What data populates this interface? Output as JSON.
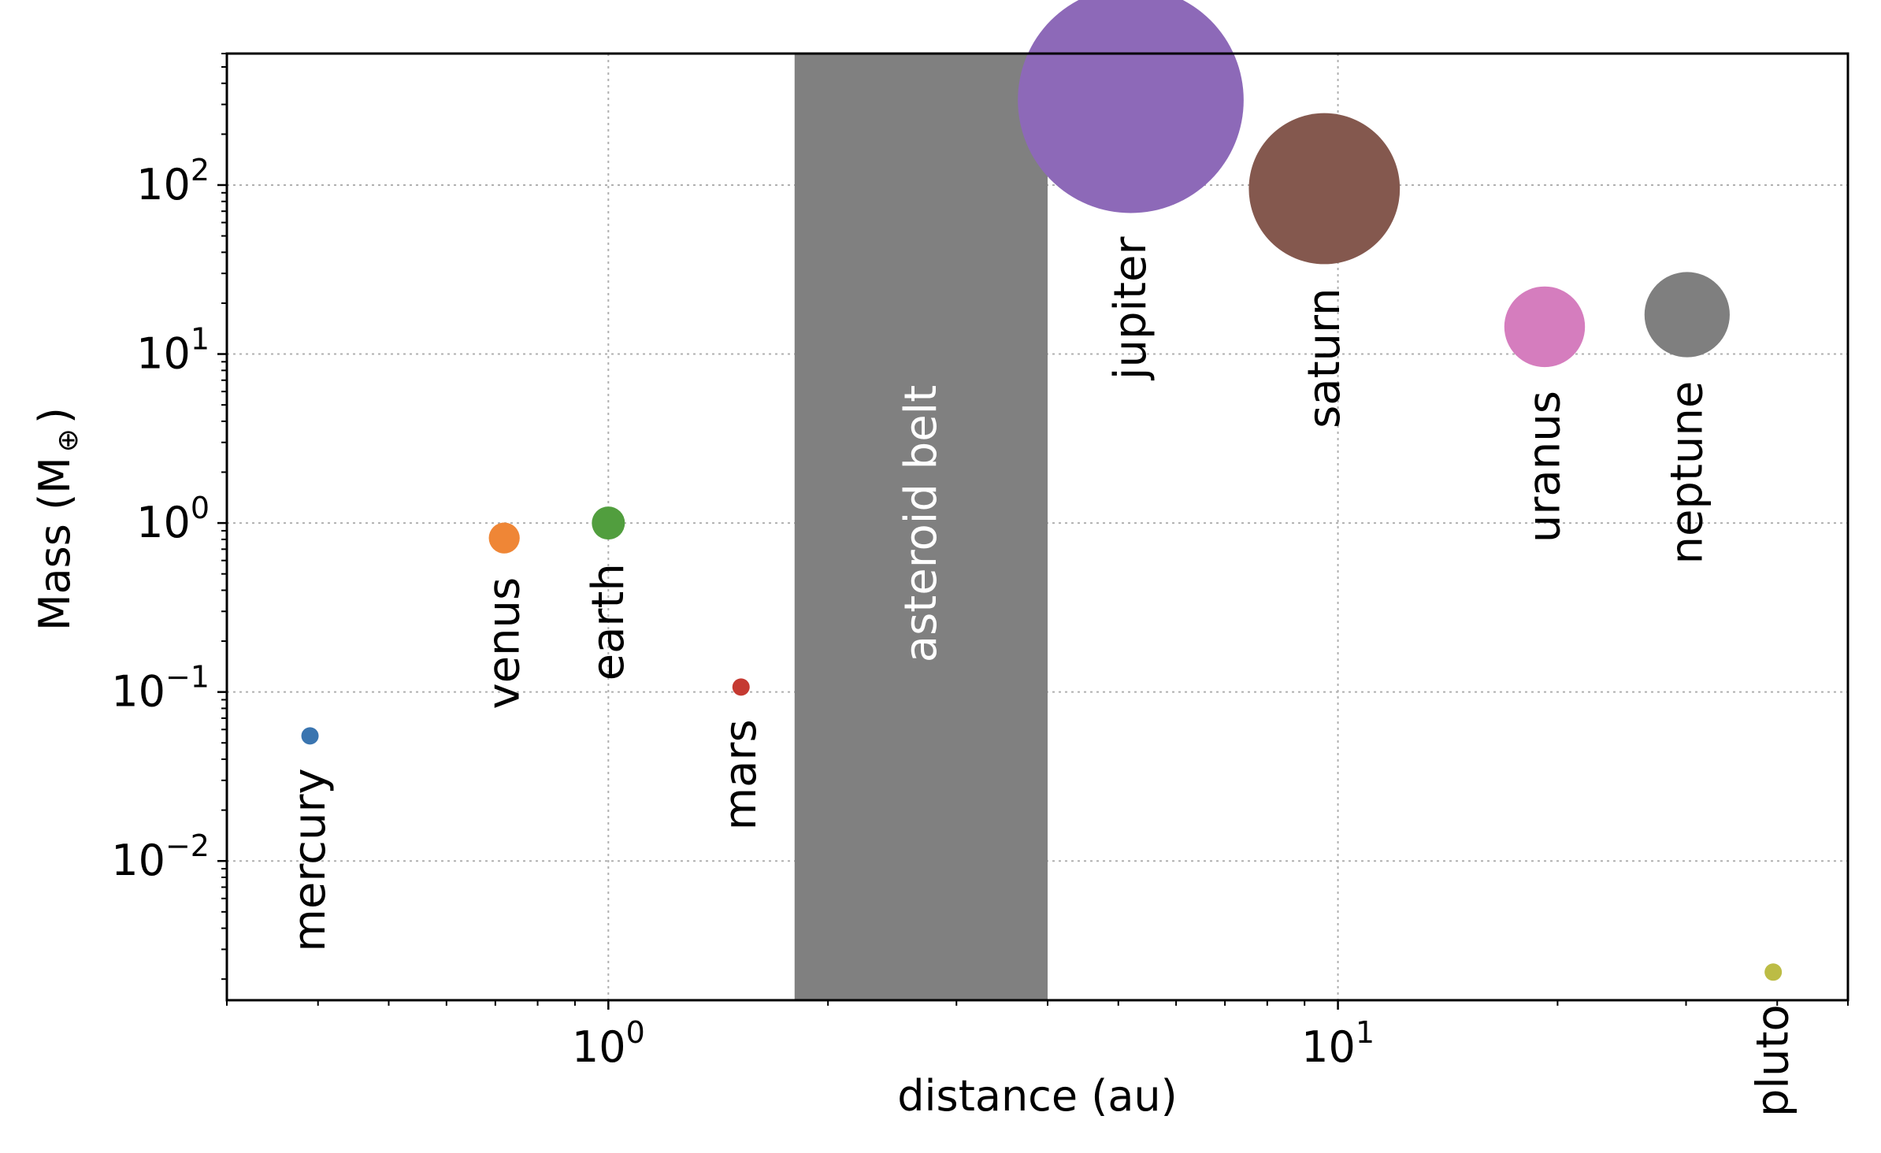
{
  "chart_data": {
    "type": "scatter",
    "title": "",
    "xlabel": "distance (au)",
    "ylabel_parts": [
      "Mass (M",
      "⊕",
      ")"
    ],
    "xscale": "log",
    "yscale": "log",
    "xlim": [
      0.3,
      50
    ],
    "ylim": [
      0.0015,
      600
    ],
    "grid": true,
    "legend": "none",
    "x_ticks": [
      {
        "value": 1,
        "base": "10",
        "exp": "0"
      },
      {
        "value": 10,
        "base": "10",
        "exp": "1"
      }
    ],
    "y_ticks": [
      {
        "value": 0.01,
        "base": "10",
        "exp": "−2"
      },
      {
        "value": 0.1,
        "base": "10",
        "exp": "−1"
      },
      {
        "value": 1,
        "base": "10",
        "exp": "0"
      },
      {
        "value": 10,
        "base": "10",
        "exp": "1"
      },
      {
        "value": 100,
        "base": "10",
        "exp": "2"
      }
    ],
    "band": {
      "label": "asteroid belt",
      "x_from": 1.8,
      "x_to": 4.0,
      "color": "#808080"
    },
    "points": [
      {
        "name": "mercury",
        "x": 0.39,
        "y": 0.055,
        "size": 0.055,
        "color": "#3a75b0",
        "label_pos": "below"
      },
      {
        "name": "venus",
        "x": 0.72,
        "y": 0.815,
        "size": 0.815,
        "color": "#ef8636",
        "label_pos": "below"
      },
      {
        "name": "earth",
        "x": 1.0,
        "y": 1.0,
        "size": 1.0,
        "color": "#519e3e",
        "label_pos": "below"
      },
      {
        "name": "mars",
        "x": 1.52,
        "y": 0.107,
        "size": 0.107,
        "color": "#c53a32",
        "label_pos": "below"
      },
      {
        "name": "jupiter",
        "x": 5.2,
        "y": 318,
        "size": 318,
        "color": "#8d69b8",
        "label_pos": "below"
      },
      {
        "name": "saturn",
        "x": 9.58,
        "y": 95.2,
        "size": 95.2,
        "color": "#84584e",
        "label_pos": "below"
      },
      {
        "name": "uranus",
        "x": 19.2,
        "y": 14.5,
        "size": 14.5,
        "color": "#d57dbe",
        "label_pos": "below"
      },
      {
        "name": "neptune",
        "x": 30.1,
        "y": 17.1,
        "size": 17.1,
        "color": "#7f7f7f",
        "label_pos": "below"
      },
      {
        "name": "pluto",
        "x": 39.5,
        "y": 0.0022,
        "size": 0.0022,
        "color": "#bcbc45",
        "label_pos": "below"
      }
    ]
  }
}
